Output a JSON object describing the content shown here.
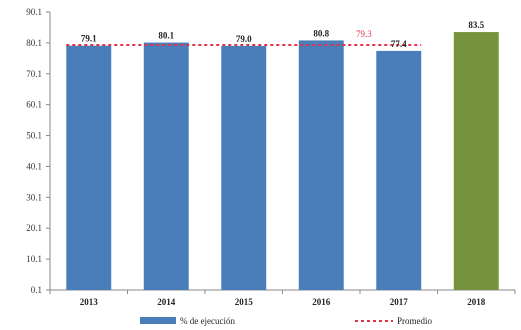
{
  "chart_data": {
    "type": "bar",
    "categories": [
      "2013",
      "2014",
      "2015",
      "2016",
      "2017",
      "2018"
    ],
    "series": [
      {
        "name": "% de ejecución",
        "values": [
          79.1,
          80.1,
          79.0,
          80.8,
          77.4,
          83.5
        ],
        "value_labels": [
          "79.1",
          "80.1",
          "79.0",
          "80.8",
          "77.4",
          "83.5"
        ],
        "colors": [
          "#4a7ebb",
          "#4a7ebb",
          "#4a7ebb",
          "#4a7ebb",
          "#4a7ebb",
          "#76923c"
        ]
      }
    ],
    "average": {
      "name": "Promedio",
      "value": 79.3,
      "label": "79.3",
      "categories": [
        "2013",
        "2017"
      ],
      "color": "#e0334a"
    },
    "yticks": [
      "0.1",
      "10.1",
      "20.1",
      "30.1",
      "40.1",
      "50.1",
      "60.1",
      "70.1",
      "80.1",
      "90.1"
    ],
    "ylim": [
      0,
      90
    ],
    "grid": false,
    "legend_position": "bottom",
    "title": "",
    "xlabel": "",
    "ylabel": ""
  }
}
